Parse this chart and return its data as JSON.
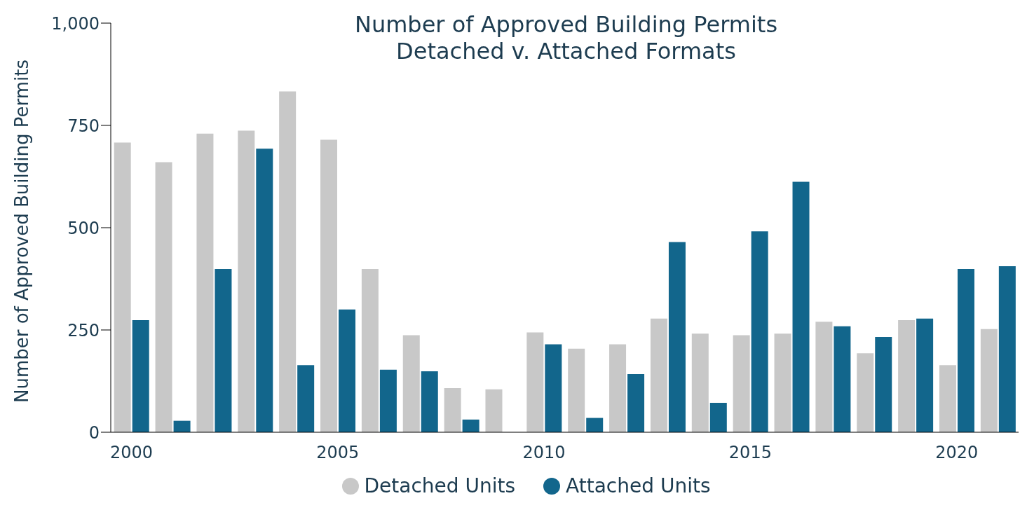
{
  "chart_data": {
    "type": "bar",
    "title": "Number of Approved Building Permits\nDetached v. Attached Formats",
    "ylabel": "Number of Approved Building Permits",
    "categories": [
      "2000",
      null,
      null,
      null,
      null,
      "2005",
      null,
      null,
      null,
      null,
      "2010",
      null,
      null,
      null,
      null,
      "2015",
      null,
      null,
      null,
      null,
      "2020",
      null
    ],
    "series": [
      {
        "name": "Detached Units",
        "color": "#c8c8c8",
        "values": [
          708,
          660,
          730,
          737,
          833,
          715,
          399,
          237,
          108,
          105,
          244,
          204,
          215,
          278,
          241,
          237,
          241,
          270,
          193,
          274,
          164,
          252
        ]
      },
      {
        "name": "Attached Units",
        "color": "#12668c",
        "values": [
          274,
          28,
          399,
          693,
          164,
          300,
          153,
          149,
          31,
          0,
          215,
          35,
          142,
          465,
          72,
          491,
          612,
          259,
          233,
          278,
          399,
          406
        ]
      }
    ],
    "ylim": [
      0,
      1000
    ],
    "yticks": [
      0,
      250,
      500,
      750,
      {
        "value": 1000,
        "label": "1,000"
      }
    ],
    "grid": false,
    "legend": "bottom"
  }
}
